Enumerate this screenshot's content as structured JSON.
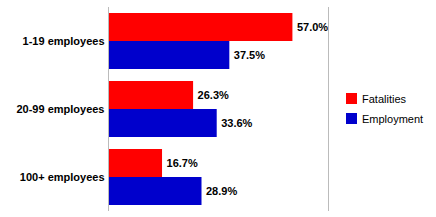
{
  "chart_data": {
    "type": "bar",
    "orientation": "horizontal",
    "categories": [
      "1-19 employees",
      "20-99 employees",
      "100+ employees"
    ],
    "series": [
      {
        "name": "Fatalities",
        "color": "#FF0000",
        "values": [
          57.0,
          26.3,
          16.7
        ],
        "value_labels": [
          "57.0%",
          "26.3%",
          "16.7%"
        ]
      },
      {
        "name": "Employment",
        "color": "#0000CC",
        "values": [
          37.5,
          33.6,
          28.9
        ],
        "value_labels": [
          "37.5%",
          "33.6%",
          "28.9%"
        ]
      }
    ],
    "xlim": [
      0,
      68
    ],
    "data_labels": true,
    "tick_labels": "y",
    "grid": false,
    "legend": "right"
  }
}
